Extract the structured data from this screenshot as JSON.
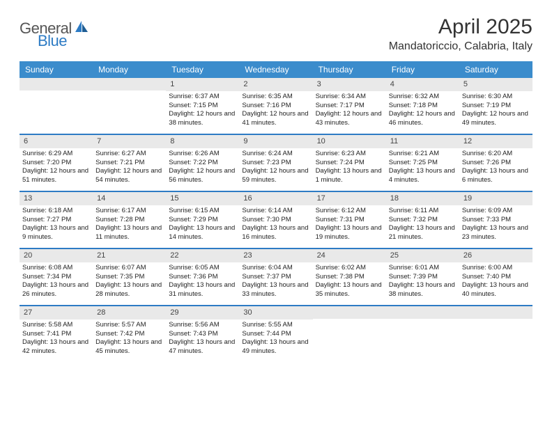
{
  "brand": {
    "name_left": "General",
    "name_right": "Blue"
  },
  "title": "April 2025",
  "location": "Mandatoriccio, Calabria, Italy",
  "colors": {
    "header_bg": "#3b8ccc",
    "week_sep": "#2d7bc4",
    "daynum_bg": "#e9e9e9",
    "text": "#333333"
  },
  "days_of_week": [
    "Sunday",
    "Monday",
    "Tuesday",
    "Wednesday",
    "Thursday",
    "Friday",
    "Saturday"
  ],
  "leading_blanks": 2,
  "month_days": 30,
  "entries": {
    "1": {
      "sunrise": "6:37 AM",
      "sunset": "7:15 PM",
      "daylight": "12 hours and 38 minutes."
    },
    "2": {
      "sunrise": "6:35 AM",
      "sunset": "7:16 PM",
      "daylight": "12 hours and 41 minutes."
    },
    "3": {
      "sunrise": "6:34 AM",
      "sunset": "7:17 PM",
      "daylight": "12 hours and 43 minutes."
    },
    "4": {
      "sunrise": "6:32 AM",
      "sunset": "7:18 PM",
      "daylight": "12 hours and 46 minutes."
    },
    "5": {
      "sunrise": "6:30 AM",
      "sunset": "7:19 PM",
      "daylight": "12 hours and 49 minutes."
    },
    "6": {
      "sunrise": "6:29 AM",
      "sunset": "7:20 PM",
      "daylight": "12 hours and 51 minutes."
    },
    "7": {
      "sunrise": "6:27 AM",
      "sunset": "7:21 PM",
      "daylight": "12 hours and 54 minutes."
    },
    "8": {
      "sunrise": "6:26 AM",
      "sunset": "7:22 PM",
      "daylight": "12 hours and 56 minutes."
    },
    "9": {
      "sunrise": "6:24 AM",
      "sunset": "7:23 PM",
      "daylight": "12 hours and 59 minutes."
    },
    "10": {
      "sunrise": "6:23 AM",
      "sunset": "7:24 PM",
      "daylight": "13 hours and 1 minute."
    },
    "11": {
      "sunrise": "6:21 AM",
      "sunset": "7:25 PM",
      "daylight": "13 hours and 4 minutes."
    },
    "12": {
      "sunrise": "6:20 AM",
      "sunset": "7:26 PM",
      "daylight": "13 hours and 6 minutes."
    },
    "13": {
      "sunrise": "6:18 AM",
      "sunset": "7:27 PM",
      "daylight": "13 hours and 9 minutes."
    },
    "14": {
      "sunrise": "6:17 AM",
      "sunset": "7:28 PM",
      "daylight": "13 hours and 11 minutes."
    },
    "15": {
      "sunrise": "6:15 AM",
      "sunset": "7:29 PM",
      "daylight": "13 hours and 14 minutes."
    },
    "16": {
      "sunrise": "6:14 AM",
      "sunset": "7:30 PM",
      "daylight": "13 hours and 16 minutes."
    },
    "17": {
      "sunrise": "6:12 AM",
      "sunset": "7:31 PM",
      "daylight": "13 hours and 19 minutes."
    },
    "18": {
      "sunrise": "6:11 AM",
      "sunset": "7:32 PM",
      "daylight": "13 hours and 21 minutes."
    },
    "19": {
      "sunrise": "6:09 AM",
      "sunset": "7:33 PM",
      "daylight": "13 hours and 23 minutes."
    },
    "20": {
      "sunrise": "6:08 AM",
      "sunset": "7:34 PM",
      "daylight": "13 hours and 26 minutes."
    },
    "21": {
      "sunrise": "6:07 AM",
      "sunset": "7:35 PM",
      "daylight": "13 hours and 28 minutes."
    },
    "22": {
      "sunrise": "6:05 AM",
      "sunset": "7:36 PM",
      "daylight": "13 hours and 31 minutes."
    },
    "23": {
      "sunrise": "6:04 AM",
      "sunset": "7:37 PM",
      "daylight": "13 hours and 33 minutes."
    },
    "24": {
      "sunrise": "6:02 AM",
      "sunset": "7:38 PM",
      "daylight": "13 hours and 35 minutes."
    },
    "25": {
      "sunrise": "6:01 AM",
      "sunset": "7:39 PM",
      "daylight": "13 hours and 38 minutes."
    },
    "26": {
      "sunrise": "6:00 AM",
      "sunset": "7:40 PM",
      "daylight": "13 hours and 40 minutes."
    },
    "27": {
      "sunrise": "5:58 AM",
      "sunset": "7:41 PM",
      "daylight": "13 hours and 42 minutes."
    },
    "28": {
      "sunrise": "5:57 AM",
      "sunset": "7:42 PM",
      "daylight": "13 hours and 45 minutes."
    },
    "29": {
      "sunrise": "5:56 AM",
      "sunset": "7:43 PM",
      "daylight": "13 hours and 47 minutes."
    },
    "30": {
      "sunrise": "5:55 AM",
      "sunset": "7:44 PM",
      "daylight": "13 hours and 49 minutes."
    }
  },
  "labels": {
    "sunrise": "Sunrise:",
    "sunset": "Sunset:",
    "daylight": "Daylight:"
  }
}
